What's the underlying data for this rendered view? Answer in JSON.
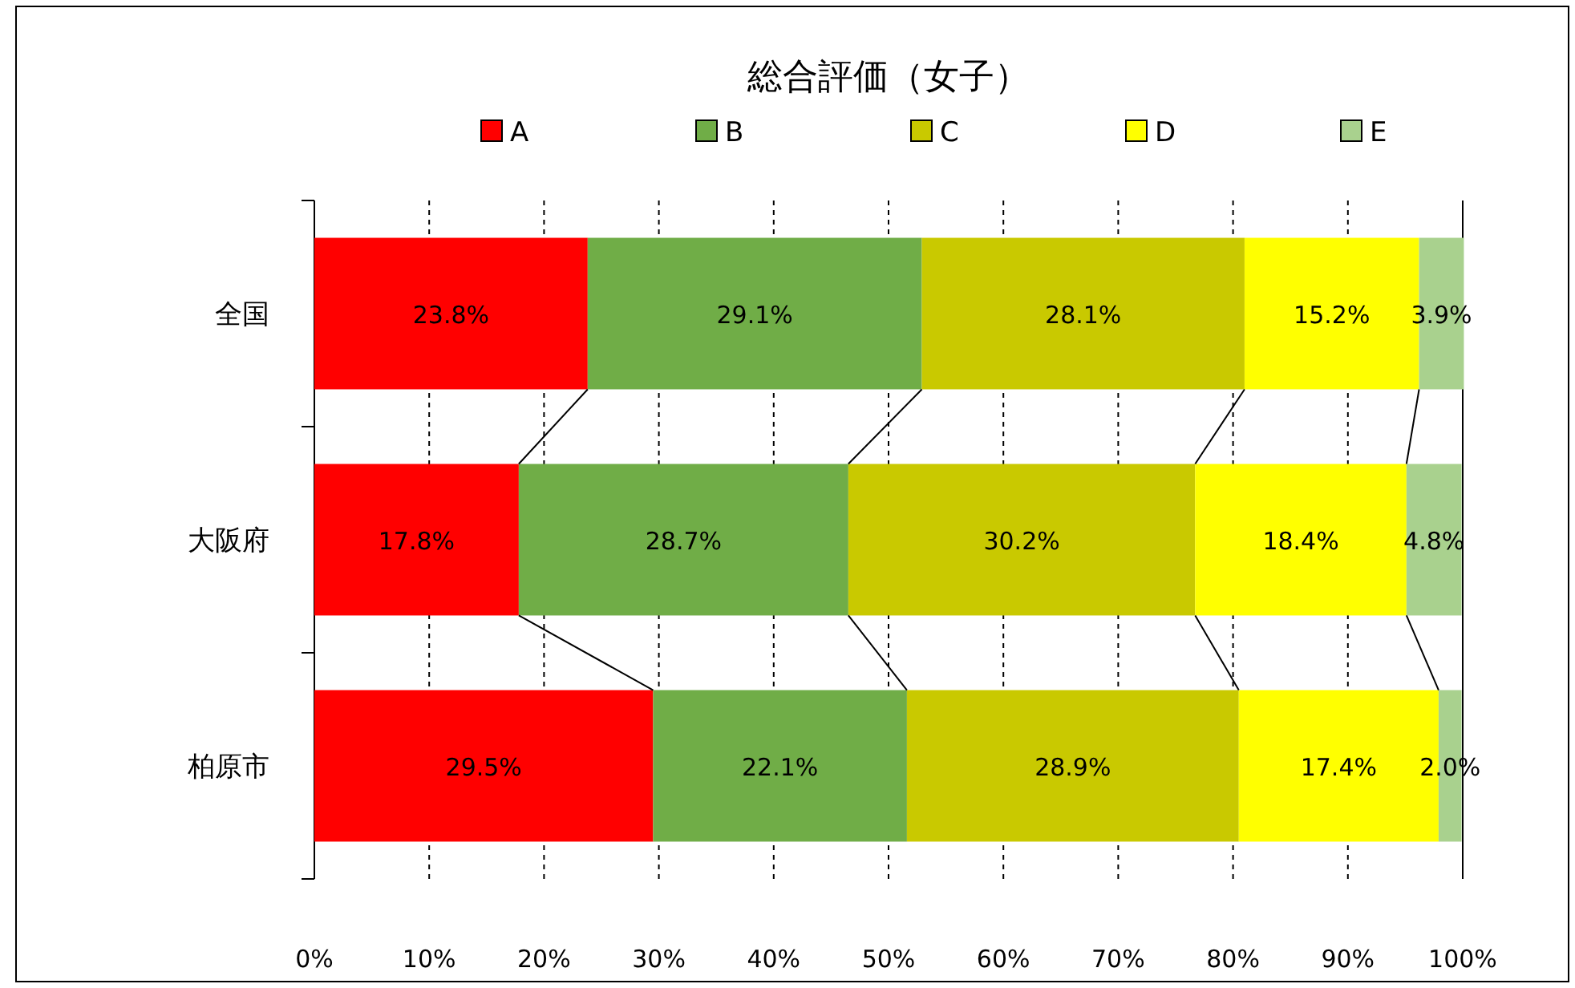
{
  "chart_data": {
    "type": "bar",
    "orientation": "horizontal",
    "stacked": true,
    "title": "総合評価（女子）",
    "categories": [
      "全国",
      "大阪府",
      "柏原市"
    ],
    "series": [
      {
        "name": "A",
        "color": "#ff0000",
        "values": [
          23.8,
          17.8,
          29.5
        ],
        "value_labels": [
          "23.8%",
          "17.8%",
          "29.5%"
        ]
      },
      {
        "name": "B",
        "color": "#70ad47",
        "values": [
          29.1,
          28.7,
          22.1
        ],
        "value_labels": [
          "29.1%",
          "28.7%",
          "22.1%"
        ]
      },
      {
        "name": "C",
        "color": "#c9c900",
        "values": [
          28.1,
          30.2,
          28.9
        ],
        "value_labels": [
          "28.1%",
          "30.2%",
          "28.9%"
        ]
      },
      {
        "name": "D",
        "color": "#ffff00",
        "values": [
          15.2,
          18.4,
          17.4
        ],
        "value_labels": [
          "15.2%",
          "18.4%",
          "17.4%"
        ]
      },
      {
        "name": "E",
        "color": "#a9d18e",
        "values": [
          3.9,
          4.8,
          2.0
        ],
        "value_labels": [
          "3.9%",
          "4.8%",
          "2.0%"
        ]
      }
    ],
    "xlim": [
      0,
      100
    ],
    "xticks": [
      {
        "value": 0,
        "label": "0%"
      },
      {
        "value": 10,
        "label": "10%"
      },
      {
        "value": 20,
        "label": "20%"
      },
      {
        "value": 30,
        "label": "30%"
      },
      {
        "value": 40,
        "label": "40%"
      },
      {
        "value": 50,
        "label": "50%"
      },
      {
        "value": 60,
        "label": "60%"
      },
      {
        "value": 70,
        "label": "70%"
      },
      {
        "value": 80,
        "label": "80%"
      },
      {
        "value": 90,
        "label": "90%"
      },
      {
        "value": 100,
        "label": "100%"
      }
    ],
    "grid": "x",
    "legend": "top"
  }
}
